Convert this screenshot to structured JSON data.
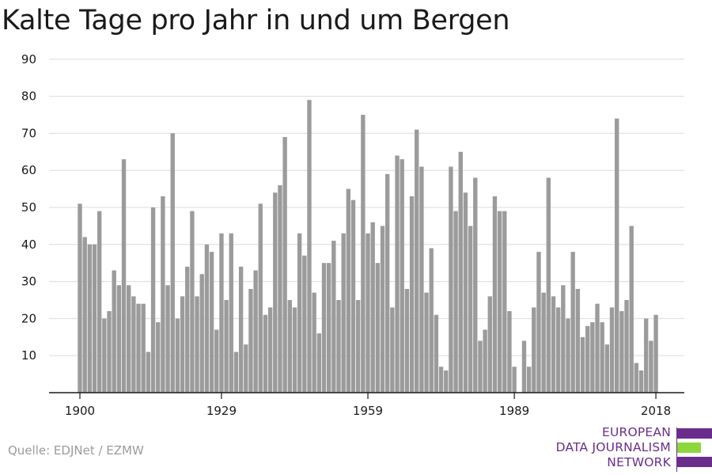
{
  "chart_data": {
    "type": "bar",
    "title": "Kalte Tage pro Jahr in und um Bergen",
    "xlabel": "",
    "ylabel": "",
    "x_start": 1900,
    "x_end": 2021,
    "xticks": [
      1900,
      1929,
      1959,
      1989,
      2018
    ],
    "yticks": [
      10,
      20,
      30,
      40,
      50,
      60,
      70,
      80,
      90
    ],
    "ylim": [
      0,
      90
    ],
    "grid": "horizontal",
    "bar_color": "#9b9b9b",
    "values": [
      51,
      42,
      40,
      40,
      49,
      20,
      22,
      33,
      29,
      63,
      29,
      26,
      24,
      24,
      11,
      50,
      19,
      53,
      29,
      70,
      20,
      26,
      34,
      49,
      26,
      32,
      40,
      38,
      17,
      43,
      25,
      43,
      11,
      34,
      13,
      28,
      33,
      51,
      21,
      23,
      54,
      56,
      69,
      25,
      23,
      43,
      37,
      79,
      27,
      16,
      35,
      35,
      41,
      25,
      43,
      55,
      52,
      25,
      75,
      43,
      46,
      35,
      45,
      59,
      23,
      64,
      63,
      28,
      53,
      71,
      61,
      27,
      39,
      21,
      7,
      6,
      61,
      49,
      65,
      54,
      45,
      58,
      14,
      17,
      26,
      53,
      49,
      49,
      22,
      7,
      0,
      14,
      7,
      23,
      38,
      27,
      58,
      26,
      23,
      29,
      20,
      38,
      28,
      15,
      18,
      19,
      24,
      19,
      13,
      23,
      74,
      22,
      25,
      45,
      8,
      6,
      20,
      14,
      21
    ]
  },
  "source": "Quelle: EDJNet / EZMW",
  "logo": {
    "lines": [
      "EUROPEAN",
      "DATA JOURNALISM",
      "NETWORK"
    ],
    "colors": [
      "#6b2d8c",
      "#8dd63b",
      "#6b2d8c"
    ]
  }
}
